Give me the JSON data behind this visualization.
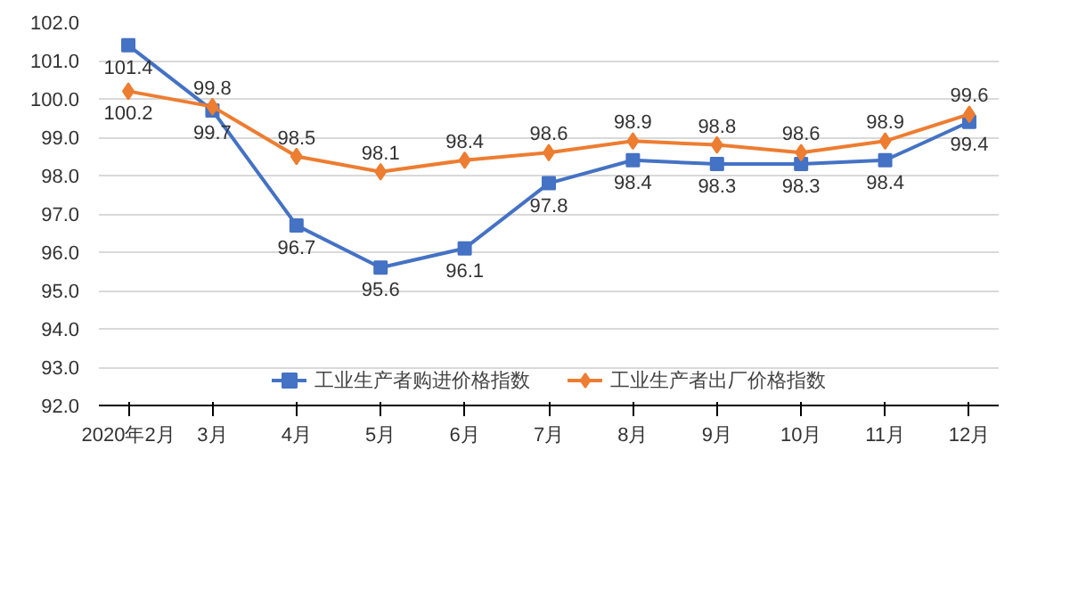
{
  "chart_data": {
    "type": "line",
    "categories": [
      "2020年2月",
      "3月",
      "4月",
      "5月",
      "6月",
      "7月",
      "8月",
      "9月",
      "10月",
      "11月",
      "12月"
    ],
    "series": [
      {
        "name": "工业生产者购进价格指数",
        "color": "#4472c4",
        "marker": "square",
        "values": [
          101.4,
          99.7,
          96.7,
          95.6,
          96.1,
          97.8,
          98.4,
          98.3,
          98.3,
          98.4,
          99.4
        ]
      },
      {
        "name": "工业生产者出厂价格指数",
        "color": "#ed7d31",
        "marker": "diamond",
        "values": [
          100.2,
          99.8,
          98.5,
          98.1,
          98.4,
          98.6,
          98.9,
          98.8,
          98.6,
          98.9,
          99.6
        ]
      }
    ],
    "ylim": [
      92.0,
      102.0
    ],
    "yticks": [
      {
        "value": 92,
        "label": "92.0"
      },
      {
        "value": 93,
        "label": "93.0"
      },
      {
        "value": 94,
        "label": "94.0"
      },
      {
        "value": 95,
        "label": "95.0"
      },
      {
        "value": 96,
        "label": "96.0"
      },
      {
        "value": 97,
        "label": "97.0"
      },
      {
        "value": 98,
        "label": "98.0"
      },
      {
        "value": 99,
        "label": "99.0"
      },
      {
        "value": 100,
        "label": "100.0"
      },
      {
        "value": 101,
        "label": "101.0"
      },
      {
        "value": 102,
        "label": "102.0"
      }
    ],
    "grid": "y",
    "legend": "bottom",
    "data_labels": true,
    "line_style": "solid"
  }
}
